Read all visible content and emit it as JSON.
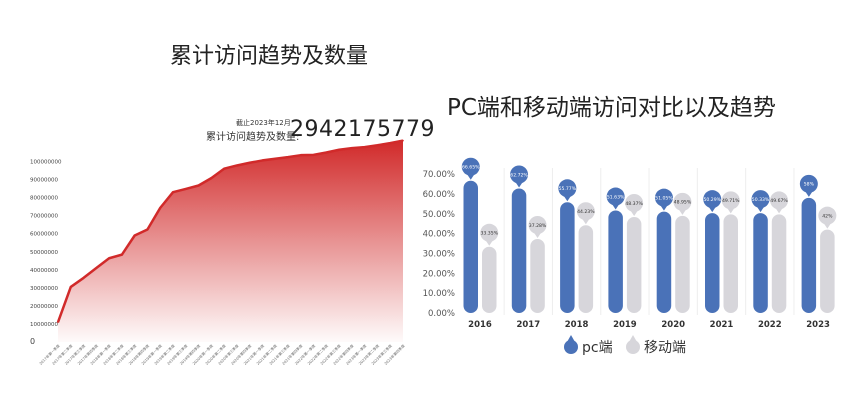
{
  "chart_data": [
    {
      "type": "area",
      "title": "累计访问趋势及数量",
      "note": "截止2023年12月",
      "total_label": "累计访问趋势及数量:",
      "total_value": "2942175779",
      "color": "#d12a2a",
      "ylim": [
        0,
        110000000
      ],
      "yticks": [
        "0",
        "10000000",
        "20000000",
        "30000000",
        "40000000",
        "50000000",
        "60000000",
        "70000000",
        "80000000",
        "90000000",
        "100000000"
      ],
      "categories": [
        "2017年第一季度",
        "2017年第二季度",
        "2017年第三季度",
        "2017年第四季度",
        "2018年第一季度",
        "2018年第二季度",
        "2018年第三季度",
        "2018年第四季度",
        "2019年第一季度",
        "2019年第二季度",
        "2019年第三季度",
        "2019年第四季度",
        "2020年第一季度",
        "2020年第二季度",
        "2020年第三季度",
        "2020年第四季度",
        "2021年第一季度",
        "2021年第二季度",
        "2021年第三季度",
        "2021年第四季度",
        "2022年第一季度",
        "2022年第二季度",
        "2022年第三季度",
        "2022年第四季度",
        "2023年第一季度",
        "2023年第二季度",
        "2023年第三季度",
        "2023年第四季度"
      ],
      "values": [
        11000000,
        30500000,
        35500000,
        41000000,
        46400000,
        48400000,
        59000000,
        62300000,
        74300000,
        83000000,
        84800000,
        86700000,
        90800000,
        96000000,
        97800000,
        99300000,
        100600000,
        101500000,
        102400000,
        103500000,
        103700000,
        105000000,
        106500000,
        107400000,
        108000000,
        109000000,
        110200000,
        111600000
      ],
      "grid": false
    },
    {
      "type": "bar",
      "title": "PC端和移动端访问对比以及趋势",
      "categories": [
        "2016",
        "2017",
        "2018",
        "2019",
        "2020",
        "2021",
        "2022",
        "2023"
      ],
      "ylim": [
        0,
        70
      ],
      "yticks": [
        "0.00%",
        "10.00%",
        "20.00%",
        "30.00%",
        "40.00%",
        "50.00%",
        "60.00%",
        "70.00%"
      ],
      "legend": "bottom",
      "series": [
        {
          "name": "pc端",
          "color": "#4a72b8",
          "values": [
            66.65,
            62.72,
            55.77,
            51.63,
            51.05,
            50.29,
            50.33,
            58
          ],
          "labels": [
            "66.65%",
            "62.72%",
            "55.77%",
            "51.63%",
            "51.05%",
            "50.29%",
            "50.33%",
            "58%"
          ]
        },
        {
          "name": "移动端",
          "color": "#d7d6db",
          "values": [
            33.35,
            37.28,
            44.23,
            48.37,
            48.95,
            49.71,
            49.67,
            42
          ],
          "labels": [
            "33.35%",
            "37.28%",
            "44.23%",
            "48.37%",
            "48.95%",
            "49.71%",
            "49.67%",
            "42%"
          ]
        }
      ]
    }
  ]
}
